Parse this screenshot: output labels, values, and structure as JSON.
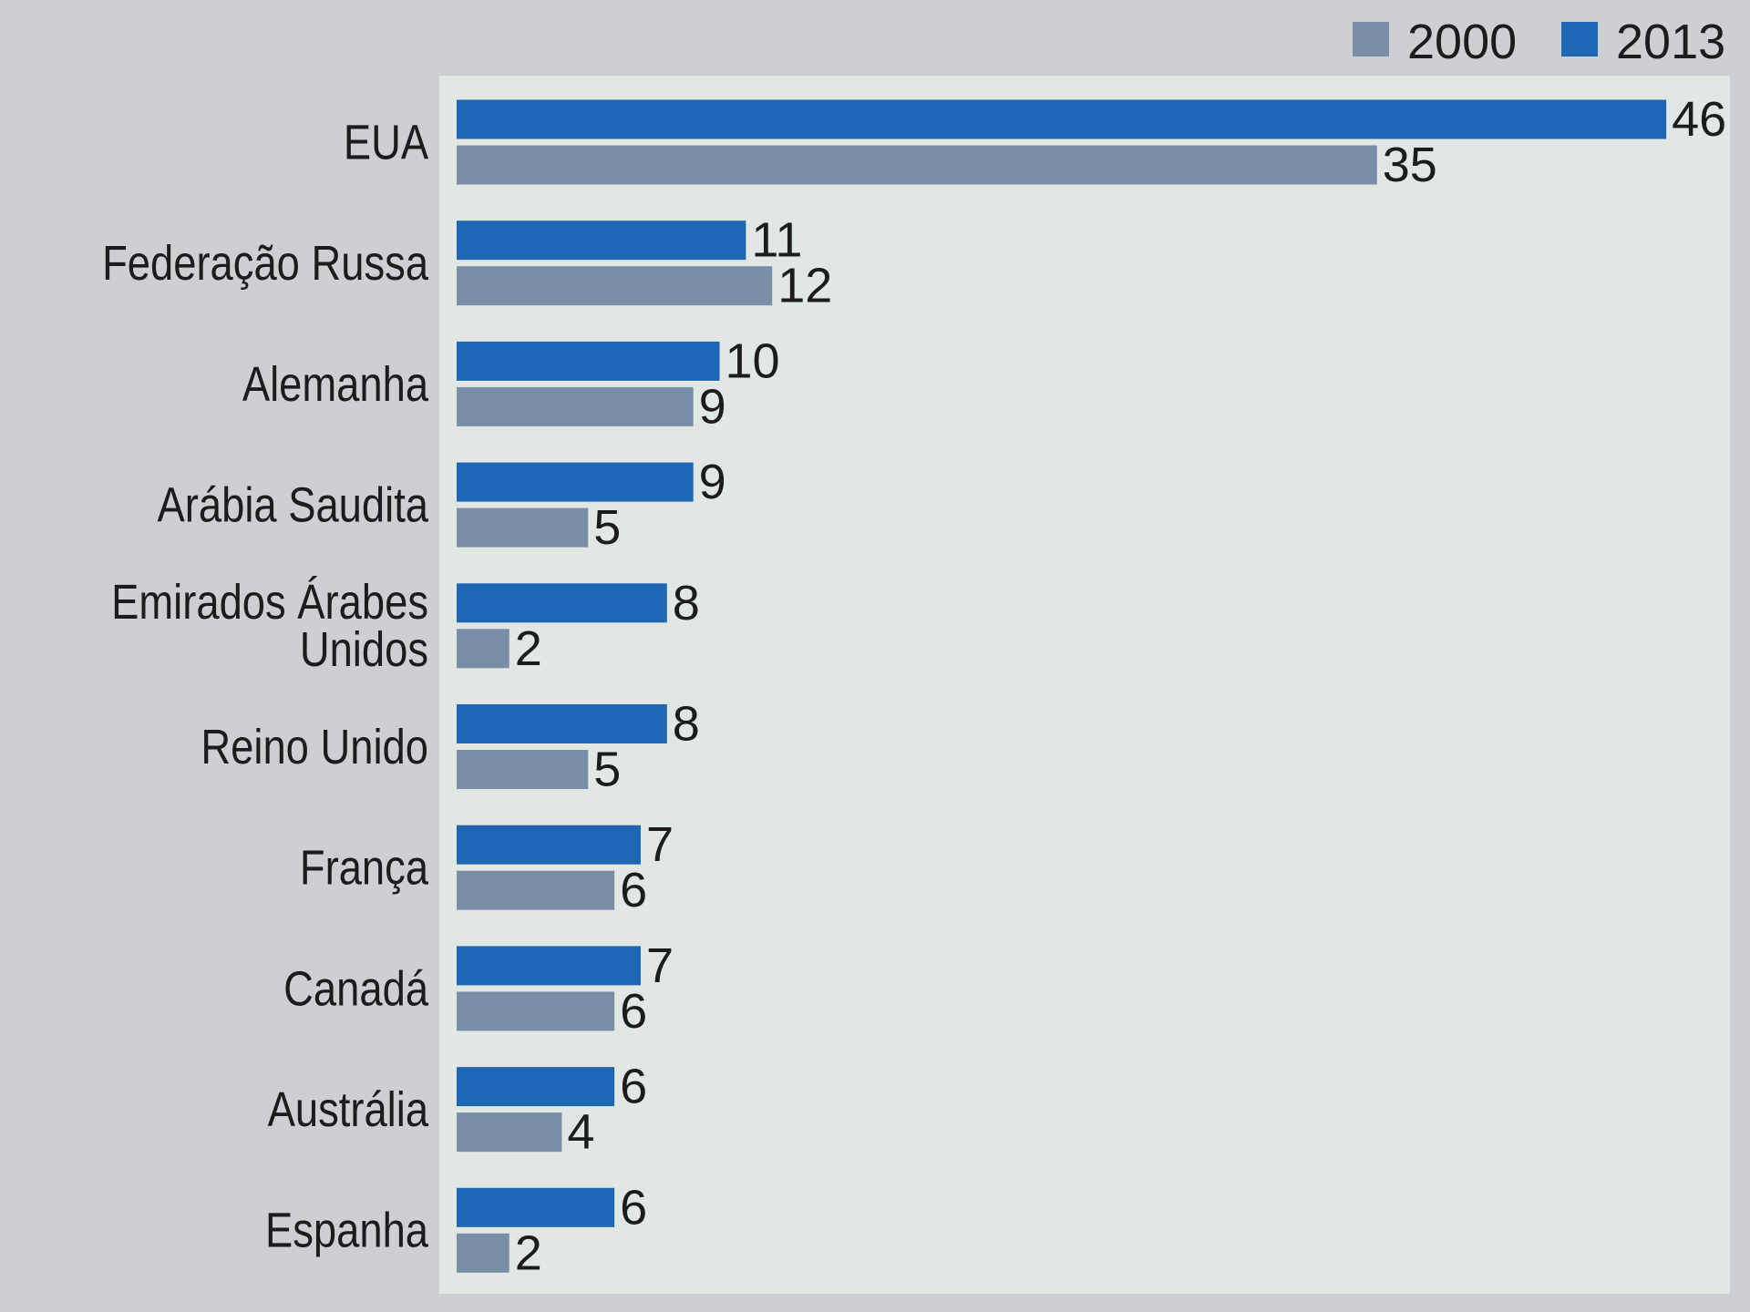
{
  "chart_data": {
    "type": "bar",
    "orientation": "horizontal",
    "categories": [
      [
        "EUA"
      ],
      [
        "Federação Russa"
      ],
      [
        "Alemanha"
      ],
      [
        "Arábia Saudita"
      ],
      [
        "Emirados Árabes",
        "Unidos"
      ],
      [
        "Reino Unido"
      ],
      [
        "França"
      ],
      [
        "Canadá"
      ],
      [
        "Austrália"
      ],
      [
        "Espanha"
      ]
    ],
    "series": [
      {
        "name": "2013",
        "color": "#1f66b5",
        "values": [
          46,
          11,
          10,
          9,
          8,
          8,
          7,
          7,
          6,
          6
        ]
      },
      {
        "name": "2000",
        "color": "#7a8ea8",
        "values": [
          35,
          12,
          9,
          5,
          2,
          5,
          6,
          6,
          4,
          2
        ]
      }
    ],
    "legend": {
      "placement": "top-right",
      "order": [
        "2000",
        "2013"
      ]
    },
    "xlim": [
      0,
      48
    ],
    "plot_background": "#e1e7e3",
    "page_background": "#cdcfd3",
    "data_labels": true,
    "grid": false
  }
}
